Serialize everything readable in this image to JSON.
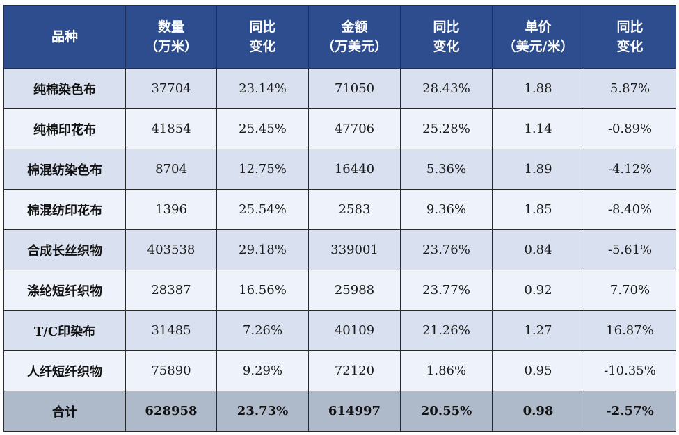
{
  "table": {
    "headers": [
      {
        "lines": [
          "品种"
        ]
      },
      {
        "lines": [
          "数量",
          "（万米）"
        ]
      },
      {
        "lines": [
          "同比",
          "变化"
        ]
      },
      {
        "lines": [
          "金额",
          "（万美元）"
        ]
      },
      {
        "lines": [
          "同比",
          "变化"
        ]
      },
      {
        "lines": [
          "单价",
          "（美元/米）"
        ]
      },
      {
        "lines": [
          "同比",
          "变化"
        ]
      }
    ],
    "rows": [
      [
        "纯棉染色布",
        "37704",
        "23.14%",
        "71050",
        "28.43%",
        "1.88",
        "5.87%"
      ],
      [
        "纯棉印花布",
        "41854",
        "25.45%",
        "47706",
        "25.28%",
        "1.14",
        "-0.89%"
      ],
      [
        "棉混纺染色布",
        "8704",
        "12.75%",
        "16440",
        "5.36%",
        "1.89",
        "-4.12%"
      ],
      [
        "棉混纺印花布",
        "1396",
        "25.54%",
        "2583",
        "9.36%",
        "1.85",
        "-8.40%"
      ],
      [
        "合成长丝织物",
        "403538",
        "29.18%",
        "339001",
        "23.76%",
        "0.84",
        "-5.61%"
      ],
      [
        "涤纶短纤织物",
        "28387",
        "16.56%",
        "25988",
        "23.77%",
        "0.92",
        "7.70%"
      ],
      [
        "T/C印染布",
        "31485",
        "7.26%",
        "40109",
        "21.26%",
        "1.27",
        "16.87%"
      ],
      [
        "人纤短纤织物",
        "75890",
        "9.29%",
        "72120",
        "1.86%",
        "0.95",
        "-10.35%"
      ]
    ],
    "total": [
      "合计",
      "628958",
      "23.73%",
      "614997",
      "20.55%",
      "0.98",
      "-2.57%"
    ]
  },
  "colors": {
    "header_bg": "#2e4d8e",
    "header_text": "#ffffff",
    "row_dark": "#d9e0f0",
    "row_light": "#eef2fa",
    "total_bg": "#aeb9ca"
  }
}
